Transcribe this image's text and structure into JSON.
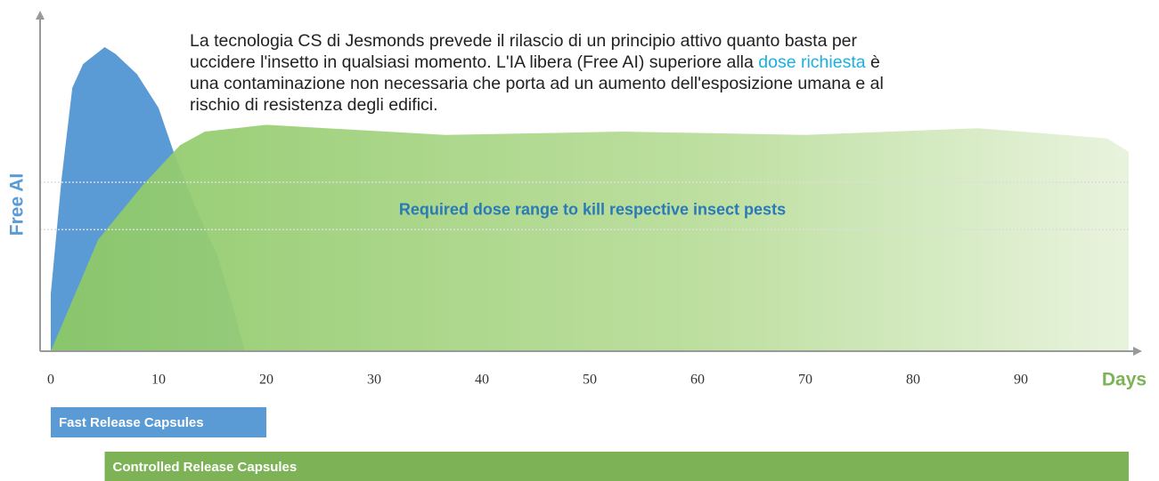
{
  "chart_data": {
    "type": "area",
    "ylabel": "Free AI",
    "xlabel": "Days",
    "xlim": [
      0,
      100
    ],
    "ylim": [
      0,
      100
    ],
    "xticks": [
      0,
      10,
      20,
      30,
      40,
      50,
      60,
      70,
      80,
      90
    ],
    "series": [
      {
        "color": "#5b9bd5",
        "x": [
          0,
          1,
          2,
          3,
          5,
          6,
          8,
          10,
          11.5,
          13.5,
          15.5,
          17,
          18
        ],
        "values": [
          17,
          51,
          78,
          85,
          90,
          88,
          82,
          72,
          58,
          42,
          28,
          12,
          0
        ]
      },
      {
        "color": "#8cc866",
        "x": [
          0,
          4.4,
          8.5,
          12,
          14.3,
          20,
          36.6,
          53,
          70,
          86,
          98,
          100
        ],
        "values": [
          0,
          33,
          49,
          61,
          65,
          67,
          64,
          65,
          64,
          66,
          63,
          59
        ]
      }
    ],
    "dose_range": {
      "label": "Required dose range to kill respective insect pests",
      "values": [
        36,
        50
      ]
    },
    "bars": [
      {
        "label": "Fast Release Capsules",
        "start": 0,
        "end": 20,
        "color": "#5b9bd5"
      },
      {
        "label": "Controlled Release Capsules",
        "start": 5,
        "end": 100,
        "color": "#7db356"
      }
    ],
    "annotation": [
      "La tecnologia CS di Jesmonds prevede il rilascio di un principio attivo quanto basta per uccidere l'insetto in qualsiasi momento. L'IA libera (Free AI) superiore alla ",
      "dose richiesta",
      " è una contaminazione non necessaria che porta ad un aumento dell'esposizione umana e al rischio di resistenza degli edifici."
    ]
  }
}
